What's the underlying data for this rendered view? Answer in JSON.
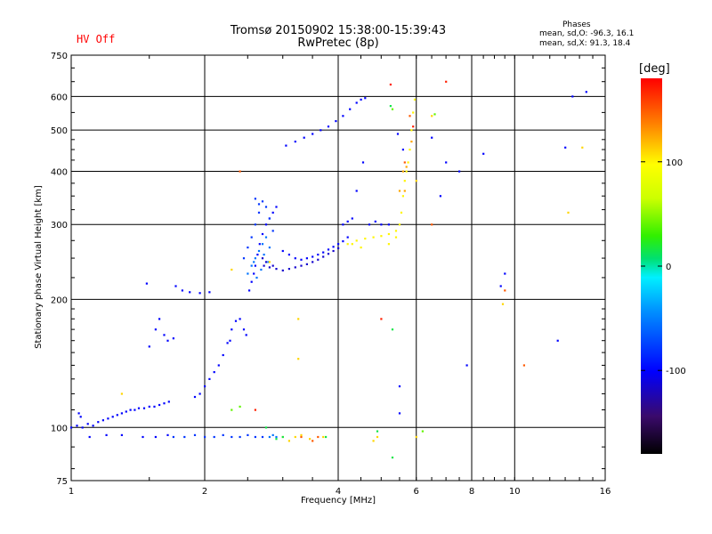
{
  "header": {
    "title_line1": "Tromsø 20150902 15:38:00-15:39:43",
    "title_line2": "RwPretec (8p)",
    "hv_status": "HV Off",
    "hv_color": "#ff0000",
    "stats_title": "Phases",
    "stats_o": "mean, sd,O: -96.3, 16.1",
    "stats_x": "mean, sd,X:  91.3, 18.4"
  },
  "chart_data": {
    "type": "scatter",
    "title": "Tromsø 20150902 15:38:00-15:39:43",
    "subtitle": "RwPretec (8p)",
    "xlabel": "Frequency [MHz]",
    "ylabel": "Stationary phase Virtual Height [km]",
    "x_scale": "log",
    "y_scale": "log",
    "xlim": [
      1,
      16
    ],
    "ylim": [
      75,
      750
    ],
    "x_ticks": [
      1,
      2,
      4,
      6,
      8,
      10,
      16
    ],
    "x_tick_labels": [
      "1",
      "2",
      "4",
      "6",
      "8",
      "10",
      "16"
    ],
    "y_ticks": [
      75,
      100,
      200,
      300,
      400,
      500,
      600,
      750
    ],
    "y_tick_labels": [
      "75",
      "100",
      "200",
      "300",
      "400",
      "500",
      "600",
      "750"
    ],
    "grid": true,
    "colorbar": {
      "label": "[deg]",
      "range": [
        -180,
        180
      ],
      "ticks": [
        100,
        0,
        -100
      ],
      "tick_labels": [
        "100",
        "0",
        "-100"
      ]
    },
    "series": [
      {
        "phase": -100,
        "points": [
          [
            1.0,
            100
          ],
          [
            1.03,
            101
          ],
          [
            1.06,
            100
          ],
          [
            1.09,
            102
          ],
          [
            1.12,
            101
          ],
          [
            1.15,
            103
          ],
          [
            1.18,
            104
          ],
          [
            1.21,
            105
          ],
          [
            1.24,
            106
          ],
          [
            1.27,
            107
          ],
          [
            1.3,
            108
          ],
          [
            1.33,
            109
          ],
          [
            1.36,
            110
          ],
          [
            1.39,
            110
          ],
          [
            1.42,
            111
          ],
          [
            1.46,
            111
          ],
          [
            1.5,
            112
          ],
          [
            1.54,
            112
          ],
          [
            1.58,
            113
          ],
          [
            1.62,
            114
          ],
          [
            1.66,
            115
          ],
          [
            1.04,
            108
          ],
          [
            1.05,
            106
          ],
          [
            1.48,
            218
          ],
          [
            1.5,
            155
          ],
          [
            1.55,
            170
          ],
          [
            1.58,
            180
          ],
          [
            1.62,
            165
          ],
          [
            1.65,
            160
          ],
          [
            1.7,
            162
          ],
          [
            1.72,
            215
          ],
          [
            1.78,
            210
          ],
          [
            1.85,
            208
          ],
          [
            1.95,
            207
          ],
          [
            2.05,
            208
          ],
          [
            1.9,
            118
          ],
          [
            1.95,
            120
          ],
          [
            2.0,
            125
          ],
          [
            2.05,
            130
          ],
          [
            2.1,
            135
          ],
          [
            2.15,
            140
          ],
          [
            2.2,
            148
          ],
          [
            2.25,
            158
          ],
          [
            2.28,
            160
          ],
          [
            2.3,
            170
          ],
          [
            2.35,
            178
          ],
          [
            2.4,
            180
          ],
          [
            2.45,
            170
          ],
          [
            2.48,
            165
          ],
          [
            2.52,
            210
          ],
          [
            2.55,
            220
          ],
          [
            2.58,
            230
          ],
          [
            2.6,
            240
          ],
          [
            2.63,
            255
          ],
          [
            2.66,
            270
          ],
          [
            2.7,
            285
          ],
          [
            2.75,
            300
          ],
          [
            2.8,
            310
          ],
          [
            2.85,
            320
          ],
          [
            2.9,
            330
          ],
          [
            3.0,
            260
          ],
          [
            3.1,
            255
          ],
          [
            3.2,
            250
          ],
          [
            3.3,
            248
          ],
          [
            3.4,
            250
          ],
          [
            3.5,
            252
          ],
          [
            3.6,
            255
          ],
          [
            3.7,
            258
          ],
          [
            3.8,
            262
          ],
          [
            3.9,
            266
          ],
          [
            4.0,
            270
          ],
          [
            4.1,
            274
          ],
          [
            4.2,
            280
          ],
          [
            3.05,
            460
          ],
          [
            3.2,
            470
          ],
          [
            3.35,
            480
          ],
          [
            3.5,
            490
          ],
          [
            3.65,
            500
          ],
          [
            3.8,
            510
          ],
          [
            3.95,
            525
          ],
          [
            4.1,
            540
          ],
          [
            4.25,
            560
          ],
          [
            4.4,
            580
          ],
          [
            4.5,
            590
          ],
          [
            4.6,
            595
          ],
          [
            4.1,
            300
          ],
          [
            4.2,
            305
          ],
          [
            4.3,
            310
          ],
          [
            4.4,
            360
          ],
          [
            4.55,
            420
          ],
          [
            4.7,
            300
          ],
          [
            4.85,
            305
          ],
          [
            5.0,
            300
          ],
          [
            5.2,
            300
          ],
          [
            5.45,
            490
          ],
          [
            5.6,
            450
          ],
          [
            5.5,
            125
          ],
          [
            5.5,
            108
          ],
          [
            6.5,
            480
          ],
          [
            7.0,
            420
          ],
          [
            7.5,
            400
          ],
          [
            8.5,
            440
          ],
          [
            9.3,
            215
          ],
          [
            9.5,
            230
          ],
          [
            12.5,
            160
          ],
          [
            13.0,
            455
          ],
          [
            13.5,
            600
          ],
          [
            14.5,
            615
          ],
          [
            6.8,
            350
          ],
          [
            7.8,
            140
          ],
          [
            1.1,
            95
          ],
          [
            1.2,
            96
          ],
          [
            1.3,
            96
          ],
          [
            1.45,
            95
          ],
          [
            1.55,
            95
          ],
          [
            1.65,
            96
          ]
        ]
      },
      {
        "phase": -115,
        "points": [
          [
            2.72,
            240
          ],
          [
            2.8,
            238
          ],
          [
            2.9,
            236
          ],
          [
            3.0,
            234
          ],
          [
            3.1,
            236
          ],
          [
            3.2,
            238
          ],
          [
            3.3,
            240
          ],
          [
            3.4,
            242
          ],
          [
            3.5,
            245
          ],
          [
            3.6,
            248
          ],
          [
            3.7,
            252
          ],
          [
            3.8,
            256
          ],
          [
            3.9,
            260
          ],
          [
            4.0,
            264
          ],
          [
            2.7,
            250
          ],
          [
            2.75,
            245
          ],
          [
            2.85,
            240
          ]
        ]
      },
      {
        "phase": -55,
        "points": [
          [
            2.5,
            230
          ],
          [
            2.55,
            240
          ],
          [
            2.6,
            250
          ],
          [
            2.65,
            260
          ],
          [
            2.7,
            270
          ],
          [
            2.75,
            280
          ],
          [
            2.8,
            265
          ],
          [
            2.62,
            225
          ],
          [
            2.68,
            235
          ],
          [
            2.58,
            245
          ],
          [
            2.72,
            255
          ],
          [
            2.78,
            245
          ],
          [
            2.9,
            95
          ],
          [
            2.85,
            96
          ],
          [
            2.8,
            95
          ]
        ]
      },
      {
        "phase": -80,
        "points": [
          [
            1.7,
            95
          ],
          [
            1.8,
            95
          ],
          [
            1.9,
            96
          ],
          [
            2.0,
            95
          ],
          [
            2.1,
            95
          ],
          [
            2.2,
            96
          ],
          [
            2.3,
            95
          ],
          [
            2.4,
            95
          ],
          [
            2.5,
            96
          ],
          [
            2.6,
            95
          ],
          [
            2.7,
            95
          ],
          [
            2.45,
            250
          ],
          [
            2.5,
            265
          ],
          [
            2.55,
            280
          ],
          [
            2.6,
            300
          ],
          [
            2.65,
            320
          ],
          [
            2.7,
            340
          ],
          [
            2.75,
            330
          ],
          [
            2.8,
            310
          ],
          [
            2.85,
            290
          ],
          [
            2.6,
            345
          ],
          [
            2.65,
            335
          ]
        ]
      },
      {
        "phase": 100,
        "points": [
          [
            4.2,
            270
          ],
          [
            4.4,
            275
          ],
          [
            4.6,
            278
          ],
          [
            4.8,
            280
          ],
          [
            5.0,
            282
          ],
          [
            5.2,
            285
          ],
          [
            5.4,
            290
          ],
          [
            5.5,
            300
          ],
          [
            5.55,
            320
          ],
          [
            5.6,
            350
          ],
          [
            5.65,
            380
          ],
          [
            5.7,
            400
          ],
          [
            5.75,
            420
          ],
          [
            5.8,
            450
          ],
          [
            5.85,
            500
          ],
          [
            5.9,
            550
          ],
          [
            5.95,
            590
          ],
          [
            5.2,
            270
          ],
          [
            5.4,
            280
          ],
          [
            4.5,
            265
          ],
          [
            4.3,
            270
          ]
        ]
      },
      {
        "phase": 125,
        "points": [
          [
            5.5,
            360
          ],
          [
            5.65,
            360
          ],
          [
            5.7,
            410
          ],
          [
            5.85,
            470
          ],
          [
            5.6,
            400
          ]
        ]
      },
      {
        "phase": 150,
        "points": [
          [
            5.8,
            540
          ],
          [
            5.65,
            420
          ],
          [
            3.5,
            93
          ],
          [
            3.6,
            95
          ],
          [
            6.5,
            300
          ],
          [
            2.4,
            400
          ],
          [
            9.5,
            210
          ],
          [
            10.5,
            140
          ],
          [
            3.3,
            95
          ]
        ]
      },
      {
        "phase": 170,
        "points": [
          [
            5.25,
            640
          ],
          [
            7.0,
            650
          ],
          [
            5.0,
            180
          ],
          [
            5.9,
            510
          ],
          [
            2.6,
            110
          ]
        ]
      },
      {
        "phase": 110,
        "points": [
          [
            3.0,
            95
          ],
          [
            3.1,
            93
          ],
          [
            3.2,
            95
          ],
          [
            3.3,
            96
          ],
          [
            3.45,
            94
          ],
          [
            3.7,
            95
          ],
          [
            3.25,
            180
          ],
          [
            3.25,
            145
          ],
          [
            4.8,
            93
          ],
          [
            4.9,
            95
          ],
          [
            6.5,
            540
          ],
          [
            9.4,
            195
          ],
          [
            13.2,
            320
          ],
          [
            14.2,
            455
          ],
          [
            2.3,
            235
          ],
          [
            1.3,
            120
          ],
          [
            2.8,
            245
          ],
          [
            6.0,
            95
          ],
          [
            6.0,
            380
          ]
        ]
      },
      {
        "phase": 40,
        "points": [
          [
            2.3,
            110
          ],
          [
            2.4,
            112
          ],
          [
            6.6,
            545
          ],
          [
            5.3,
            560
          ],
          [
            6.2,
            98
          ]
        ]
      },
      {
        "phase": 15,
        "points": [
          [
            2.75,
            100
          ],
          [
            2.9,
            94
          ],
          [
            3.0,
            95
          ],
          [
            4.9,
            98
          ],
          [
            5.3,
            85
          ],
          [
            5.3,
            170
          ],
          [
            5.25,
            570
          ],
          [
            3.75,
            95
          ]
        ]
      }
    ]
  }
}
